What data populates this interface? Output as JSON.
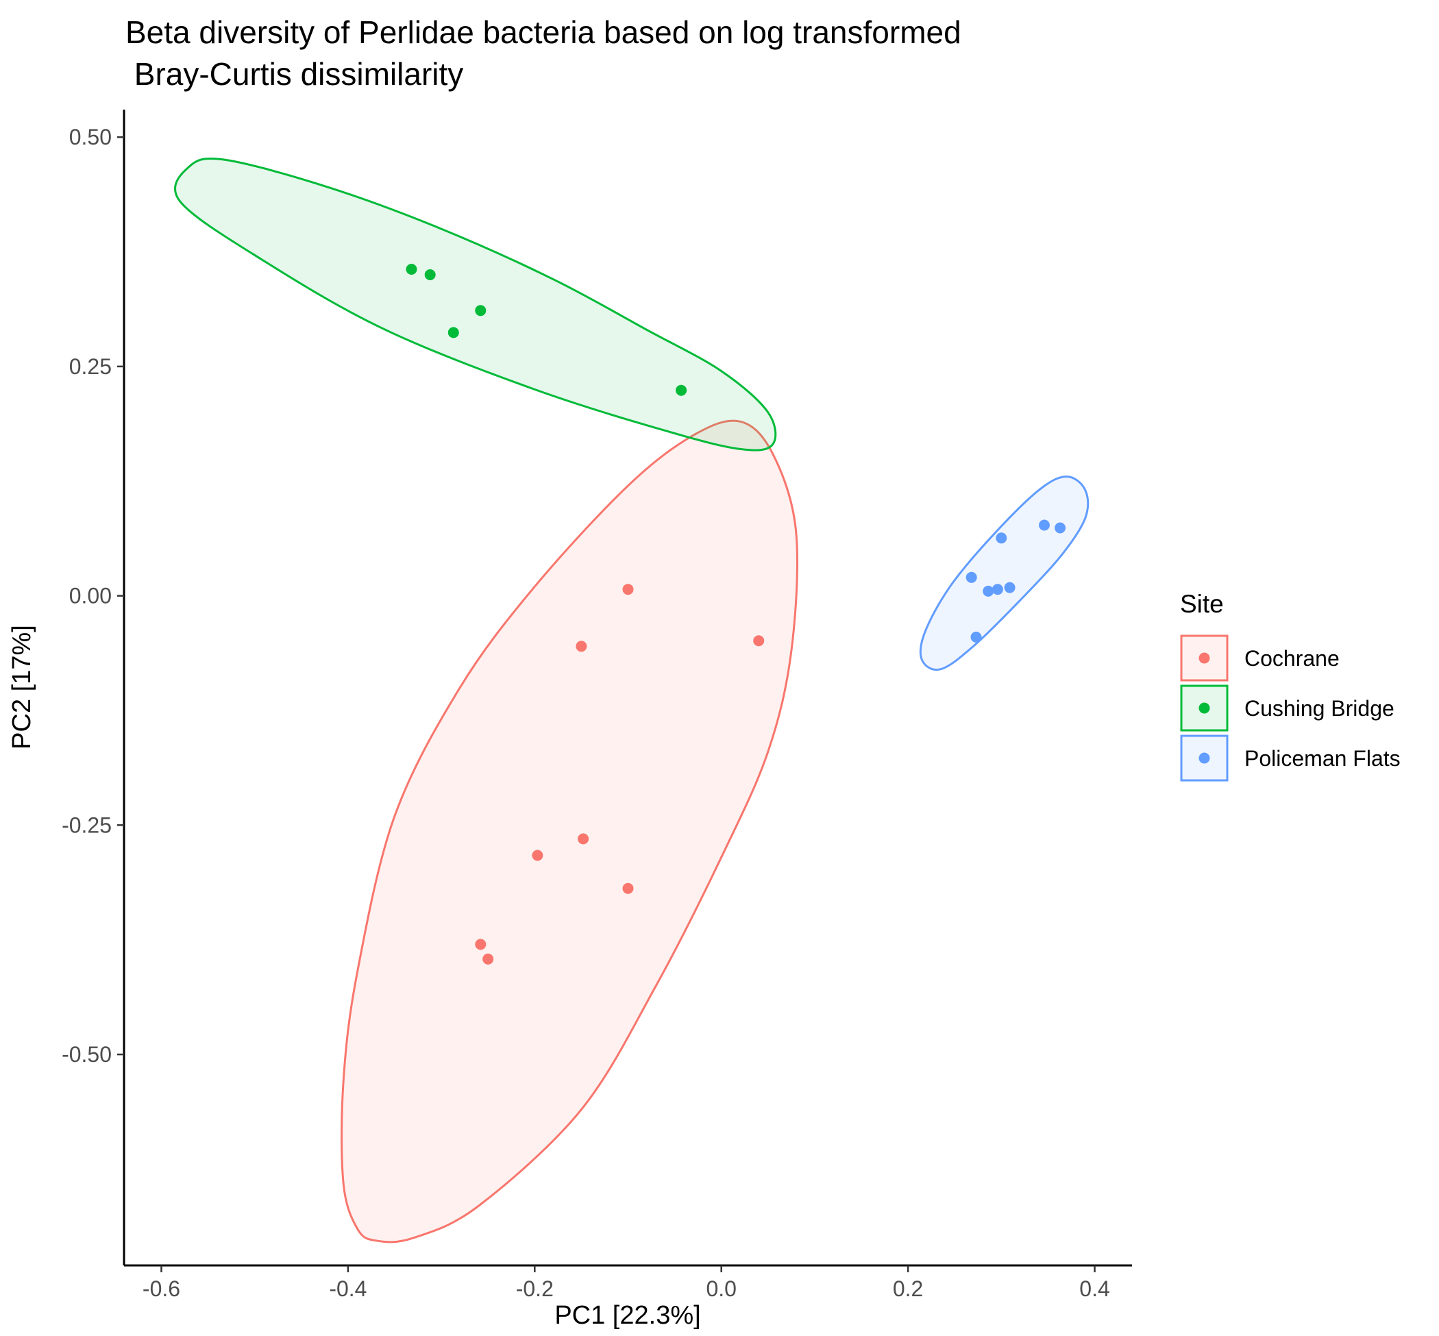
{
  "chart_data": {
    "type": "scatter",
    "title_lines": [
      "Beta diversity of Perlidae bacteria based on log transformed",
      " Bray-Curtis dissimilarity"
    ],
    "xlabel": "PC1 [22.3%]",
    "ylabel": "PC2 [17%]",
    "xlim": [
      -0.64,
      0.44
    ],
    "ylim": [
      -0.73,
      0.53
    ],
    "x_ticks": [
      -0.6,
      -0.4,
      -0.2,
      0.0,
      0.2,
      0.4
    ],
    "x_tick_labels": [
      "-0.6",
      "-0.4",
      "-0.2",
      "0.0",
      "0.2",
      "0.4"
    ],
    "y_ticks": [
      0.5,
      0.25,
      0.0,
      -0.25,
      -0.5
    ],
    "y_tick_labels": [
      "0.50",
      "0.25",
      "0.00",
      "-0.25",
      "-0.50"
    ],
    "grid": false,
    "legend": {
      "title": "Site",
      "position": "right"
    },
    "series": [
      {
        "name": "Cochrane",
        "color": "#F8766D",
        "points": [
          [
            -0.1,
            0.007
          ],
          [
            -0.15,
            -0.055
          ],
          [
            0.04,
            -0.049
          ],
          [
            -0.197,
            -0.283
          ],
          [
            -0.148,
            -0.265
          ],
          [
            -0.1,
            -0.319
          ],
          [
            -0.258,
            -0.38
          ],
          [
            -0.25,
            -0.396
          ]
        ],
        "ellipse": [
          [
            0.02,
            0.19
          ],
          [
            0.055,
            0.155
          ],
          [
            0.08,
            0.07
          ],
          [
            0.075,
            -0.06
          ],
          [
            0.05,
            -0.17
          ],
          [
            0.0,
            -0.285
          ],
          [
            -0.07,
            -0.425
          ],
          [
            -0.15,
            -0.56
          ],
          [
            -0.26,
            -0.665
          ],
          [
            -0.33,
            -0.7
          ],
          [
            -0.37,
            -0.703
          ],
          [
            -0.39,
            -0.69
          ],
          [
            -0.405,
            -0.64
          ],
          [
            -0.405,
            -0.53
          ],
          [
            -0.39,
            -0.41
          ],
          [
            -0.35,
            -0.24
          ],
          [
            -0.28,
            -0.1
          ],
          [
            -0.2,
            0.01
          ],
          [
            -0.1,
            0.12
          ],
          [
            -0.03,
            0.175
          ]
        ]
      },
      {
        "name": "Cushing Bridge",
        "color": "#00BA38",
        "points": [
          [
            -0.332,
            0.356
          ],
          [
            -0.312,
            0.35
          ],
          [
            -0.258,
            0.311
          ],
          [
            -0.287,
            0.287
          ],
          [
            -0.043,
            0.224
          ]
        ],
        "ellipse": [
          [
            -0.57,
            0.468
          ],
          [
            -0.53,
            0.475
          ],
          [
            -0.42,
            0.445
          ],
          [
            -0.3,
            0.4
          ],
          [
            -0.18,
            0.345
          ],
          [
            -0.08,
            0.29
          ],
          [
            0.0,
            0.245
          ],
          [
            0.05,
            0.2
          ],
          [
            0.055,
            0.165
          ],
          [
            0.02,
            0.16
          ],
          [
            -0.06,
            0.18
          ],
          [
            -0.2,
            0.225
          ],
          [
            -0.36,
            0.29
          ],
          [
            -0.49,
            0.365
          ],
          [
            -0.58,
            0.43
          ]
        ]
      },
      {
        "name": "Policeman Flats",
        "color": "#619CFF",
        "points": [
          [
            0.346,
            0.077
          ],
          [
            0.363,
            0.074
          ],
          [
            0.3,
            0.063
          ],
          [
            0.268,
            0.02
          ],
          [
            0.286,
            0.005
          ],
          [
            0.296,
            0.007
          ],
          [
            0.309,
            0.009
          ],
          [
            0.273,
            -0.045
          ]
        ],
        "ellipse": [
          [
            0.37,
            0.13
          ],
          [
            0.39,
            0.115
          ],
          [
            0.39,
            0.085
          ],
          [
            0.365,
            0.045
          ],
          [
            0.32,
            -0.005
          ],
          [
            0.27,
            -0.055
          ],
          [
            0.235,
            -0.08
          ],
          [
            0.215,
            -0.07
          ],
          [
            0.218,
            -0.04
          ],
          [
            0.245,
            0.01
          ],
          [
            0.29,
            0.065
          ],
          [
            0.34,
            0.115
          ]
        ]
      }
    ]
  }
}
